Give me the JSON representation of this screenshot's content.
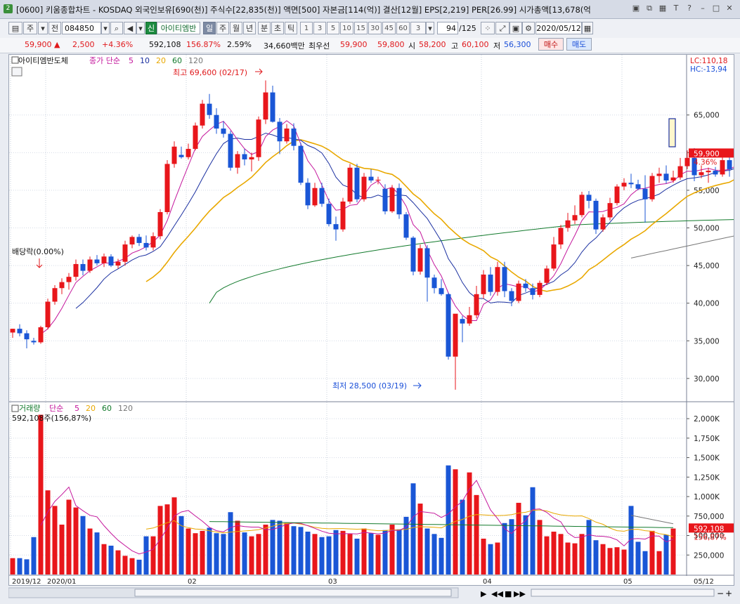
{
  "window": {
    "number": "2",
    "title": "[0600] 키움종합차트 - KOSDAQ 외국인보유[690(천)] 주식수[22,835(천)] 액면[500] 자본금[114(억)] 결산[12월] EPS[2,219] PER[26.99] 시가총액[13,678(억",
    "buttons": [
      "▣",
      "⧉",
      "▦",
      "T",
      "?",
      "–",
      "□",
      "✕"
    ]
  },
  "toolbar": {
    "type_label": "주",
    "prev_label": "전",
    "code": "084850",
    "stock_badge": "신",
    "stock_name": "아이티엠반",
    "periods": [
      "일",
      "주",
      "월",
      "년",
      "분",
      "초",
      "틱"
    ],
    "active_period": "일",
    "intervals": [
      "1",
      "3",
      "5",
      "10",
      "15",
      "30",
      "45",
      "60"
    ],
    "interval_value": "3",
    "count": "94",
    "count_total": "/125",
    "date": "2020/05/12"
  },
  "quote": {
    "price": "59,900 ▲",
    "change": "2,500",
    "change_pct": "+4.36%",
    "volume": "592,108",
    "volume_pct": "156.87%",
    "turnover": "2.59%",
    "amount": "34,660백만",
    "bid_label": "최우선",
    "bid": "59,900",
    "ask": "59,800",
    "open_label": "시",
    "open": "58,200",
    "high_label": "고",
    "high": "60,100",
    "low_label": "저",
    "low": "56,300",
    "buy_label": "매수",
    "sell_label": "매도"
  },
  "colors": {
    "up": "#e8161b",
    "down": "#1a56d6",
    "ma5": "#c4169c",
    "ma10": "#1a2fa0",
    "ma20": "#e9a800",
    "ma60": "#127a2c",
    "ma120": "#777777"
  },
  "chart_data": [
    {
      "type": "candlestick",
      "legend_name": "아이티엠반도체",
      "legend_ma": "종가 단순",
      "ma_periods": [
        "5",
        "10",
        "20",
        "60",
        "120"
      ],
      "right_top": [
        "LC:110,18",
        "HC:-13,94"
      ],
      "price_label": "59,900",
      "price_pct": "4.36%",
      "high_annotation": "최고 69,600 (02/17)",
      "low_annotation": "최저 28,500 (03/19)",
      "dividend_annotation": "배당락(0.00%)",
      "y_ticks": [
        "65,000",
        "60,000",
        "55,000",
        "50,000",
        "45,000",
        "40,000",
        "35,000",
        "30,000"
      ],
      "ylim": [
        27000,
        73000
      ],
      "x_labels": [
        "2019/12",
        "2020/01",
        "02",
        "03",
        "04",
        "05",
        "05/12"
      ],
      "candles": [
        [
          36.1,
          36.6,
          35.4,
          36.6
        ],
        [
          36.6,
          37.2,
          35.6,
          36.0
        ],
        [
          36.0,
          36.4,
          34.0,
          35.2
        ],
        [
          35.0,
          35.4,
          34.5,
          34.8
        ],
        [
          34.8,
          37.0,
          34.6,
          36.8
        ],
        [
          36.8,
          40.6,
          36.5,
          40.2
        ],
        [
          40.2,
          42.4,
          39.8,
          42.0
        ],
        [
          42.0,
          43.3,
          41.2,
          42.8
        ],
        [
          42.8,
          44.0,
          41.8,
          43.5
        ],
        [
          43.5,
          45.8,
          43.0,
          45.2
        ],
        [
          45.2,
          45.8,
          43.7,
          44.3
        ],
        [
          44.3,
          46.2,
          44.0,
          45.8
        ],
        [
          45.8,
          46.4,
          45.0,
          45.3
        ],
        [
          45.3,
          46.6,
          44.8,
          46.2
        ],
        [
          46.2,
          46.5,
          44.8,
          45.0
        ],
        [
          45.0,
          45.9,
          44.6,
          45.5
        ],
        [
          45.5,
          48.3,
          45.0,
          47.8
        ],
        [
          47.8,
          49.0,
          47.3,
          48.8
        ],
        [
          48.8,
          49.2,
          47.6,
          48.0
        ],
        [
          48.0,
          49.0,
          47.0,
          47.4
        ],
        [
          47.4,
          49.4,
          47.0,
          48.9
        ],
        [
          48.9,
          52.5,
          48.5,
          52.1
        ],
        [
          52.1,
          59.0,
          51.8,
          58.5
        ],
        [
          58.5,
          61.5,
          58.0,
          60.8
        ],
        [
          59.7,
          60.8,
          59.2,
          59.4
        ],
        [
          59.4,
          61.2,
          59.1,
          60.5
        ],
        [
          60.5,
          64.0,
          60.3,
          63.6
        ],
        [
          63.6,
          67.0,
          63.2,
          66.5
        ],
        [
          66.5,
          67.8,
          64.5,
          65.0
        ],
        [
          65.0,
          65.9,
          62.5,
          63.2
        ],
        [
          63.2,
          64.2,
          62.0,
          62.5
        ],
        [
          62.5,
          62.9,
          57.6,
          58.0
        ],
        [
          58.0,
          60.2,
          57.2,
          59.8
        ],
        [
          59.8,
          60.5,
          58.3,
          59.1
        ],
        [
          59.1,
          60.0,
          57.5,
          59.4
        ],
        [
          59.4,
          64.8,
          58.9,
          64.4
        ],
        [
          64.4,
          69.6,
          63.8,
          68.0
        ],
        [
          68.0,
          68.9,
          64.0,
          64.1
        ],
        [
          64.1,
          64.6,
          59.8,
          61.5
        ],
        [
          61.5,
          63.8,
          61.2,
          63.2
        ],
        [
          63.2,
          63.9,
          60.3,
          60.9
        ],
        [
          60.9,
          61.3,
          55.7,
          56.0
        ],
        [
          56.0,
          56.6,
          52.5,
          53.0
        ],
        [
          53.0,
          56.0,
          52.8,
          55.3
        ],
        [
          55.3,
          56.0,
          52.8,
          53.2
        ],
        [
          53.2,
          53.9,
          50.2,
          50.5
        ],
        [
          50.5,
          51.5,
          48.3,
          49.8
        ],
        [
          49.8,
          54.0,
          49.5,
          53.5
        ],
        [
          53.5,
          58.5,
          53.2,
          58.0
        ],
        [
          58.0,
          58.5,
          53.4,
          53.8
        ],
        [
          53.8,
          57.3,
          53.5,
          56.8
        ],
        [
          56.8,
          57.8,
          56.0,
          56.3
        ],
        [
          56.3,
          56.8,
          55.8,
          56.4
        ],
        [
          55.2,
          55.8,
          51.8,
          52.2
        ],
        [
          52.2,
          55.7,
          52.0,
          55.3
        ],
        [
          55.3,
          55.9,
          51.2,
          51.8
        ],
        [
          51.8,
          52.1,
          48.4,
          48.7
        ],
        [
          48.7,
          48.9,
          43.7,
          44.2
        ],
        [
          44.2,
          47.8,
          43.8,
          47.3
        ],
        [
          47.3,
          47.7,
          40.2,
          43.4
        ],
        [
          43.4,
          43.8,
          41.3,
          42.0
        ],
        [
          42.0,
          43.2,
          41.0,
          41.2
        ],
        [
          41.2,
          41.4,
          32.5,
          32.9
        ],
        [
          32.9,
          32.9,
          28.5,
          38.6
        ],
        [
          37.9,
          38.3,
          34.8,
          37.3
        ],
        [
          37.3,
          39.5,
          37.0,
          38.4
        ],
        [
          38.4,
          42.3,
          38.0,
          41.2
        ],
        [
          41.2,
          44.4,
          40.6,
          43.8
        ],
        [
          43.8,
          44.8,
          41.0,
          41.5
        ],
        [
          41.5,
          45.5,
          41.0,
          44.8
        ],
        [
          44.8,
          45.5,
          40.8,
          41.6
        ],
        [
          41.6,
          42.0,
          39.6,
          40.3
        ],
        [
          40.3,
          43.0,
          40.0,
          42.6
        ],
        [
          42.6,
          43.2,
          41.5,
          42.0
        ],
        [
          42.0,
          42.6,
          40.5,
          41.1
        ],
        [
          41.1,
          43.0,
          40.8,
          42.7
        ],
        [
          42.7,
          45.0,
          42.4,
          44.6
        ],
        [
          44.6,
          48.8,
          44.3,
          47.8
        ],
        [
          47.8,
          50.4,
          47.2,
          50.0
        ],
        [
          50.0,
          52.0,
          49.5,
          51.0
        ],
        [
          51.0,
          53.0,
          50.5,
          51.7
        ],
        [
          51.7,
          54.8,
          51.4,
          54.4
        ],
        [
          54.4,
          54.9,
          52.6,
          53.6
        ],
        [
          53.6,
          53.9,
          49.2,
          49.8
        ],
        [
          49.8,
          51.8,
          49.5,
          51.4
        ],
        [
          51.4,
          54.0,
          51.0,
          53.3
        ],
        [
          53.3,
          55.8,
          53.0,
          55.5
        ],
        [
          55.5,
          56.6,
          55.0,
          56.0
        ],
        [
          56.0,
          57.2,
          55.3,
          55.8
        ],
        [
          55.8,
          56.4,
          55.0,
          55.2
        ],
        [
          55.2,
          57.0,
          50.7,
          53.8
        ],
        [
          53.8,
          57.3,
          53.5,
          56.9
        ],
        [
          56.9,
          58.0,
          56.0,
          57.2
        ],
        [
          57.2,
          58.3,
          55.9,
          56.3
        ],
        [
          56.3,
          57.6,
          56.0,
          56.7
        ],
        [
          56.7,
          59.3,
          56.4,
          58.2
        ],
        [
          58.2,
          60.3,
          57.8,
          59.3
        ],
        [
          59.3,
          60.6,
          56.2,
          57.0
        ],
        [
          57.0,
          58.3,
          56.6,
          57.4
        ],
        [
          57.4,
          58.0,
          56.0,
          57.6
        ],
        [
          57.6,
          58.1,
          56.8,
          57.1
        ],
        [
          57.1,
          59.8,
          56.8,
          59.0
        ],
        [
          59.0,
          59.5,
          56.8,
          57.8
        ],
        [
          57.5,
          60.1,
          56.3,
          59.9
        ]
      ],
      "ma60_last": "52,000",
      "ma120_last": "47,600"
    },
    {
      "type": "bar",
      "legend_name": "거래량",
      "legend_ma": "단순",
      "ma_periods": [
        "5",
        "20",
        "60",
        "120"
      ],
      "volume_readout": "592,108주(156,87%)",
      "price_label": "592,108",
      "price_pct": "156,87%",
      "y_ticks": [
        "2,000K",
        "1,750K",
        "1,500K",
        "1,250K",
        "1,000K",
        "750,000",
        "500,000",
        "250,000"
      ],
      "ylim": [
        0,
        2100000
      ],
      "volumes": [
        210,
        210,
        195,
        480,
        2050,
        1080,
        880,
        640,
        960,
        860,
        750,
        590,
        540,
        390,
        370,
        310,
        240,
        210,
        190,
        490,
        490,
        880,
        900,
        990,
        750,
        590,
        530,
        560,
        600,
        530,
        520,
        800,
        690,
        540,
        490,
        520,
        640,
        700,
        690,
        660,
        620,
        610,
        550,
        520,
        480,
        490,
        570,
        560,
        520,
        460,
        590,
        530,
        510,
        570,
        640,
        580,
        740,
        1170,
        910,
        590,
        520,
        470,
        1400,
        1350,
        960,
        1310,
        1020,
        460,
        390,
        410,
        660,
        710,
        920,
        760,
        1120,
        700,
        490,
        550,
        520,
        410,
        400,
        520,
        700,
        440,
        390,
        340,
        350,
        320,
        880,
        420,
        300,
        560,
        300,
        510,
        590
      ]
    }
  ]
}
